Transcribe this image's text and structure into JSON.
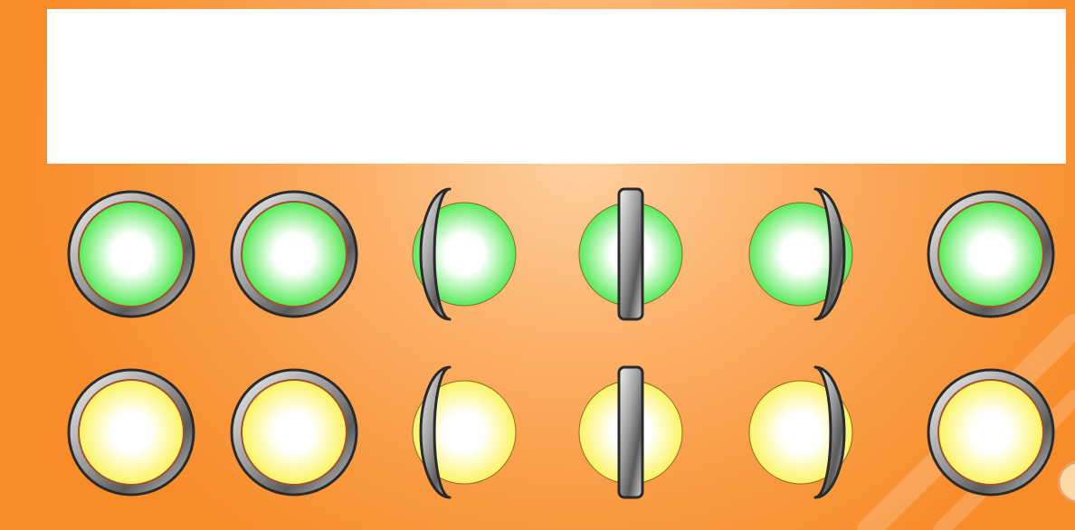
{
  "board": {
    "rows": 2,
    "columns": 6
  },
  "colors": {
    "green": "#3ee63e",
    "yellow": "#fbf24a",
    "background": "#f99c45",
    "panel": "#ffffff"
  },
  "rows": [
    {
      "color": "green",
      "coins": [
        {
          "state": "face-up",
          "rotation": 0.0
        },
        {
          "state": "face-up",
          "rotation": 0.0
        },
        {
          "state": "flipping",
          "rotation": 0.33
        },
        {
          "state": "edge-on",
          "rotation": 0.5
        },
        {
          "state": "flipping",
          "rotation": 0.67
        },
        {
          "state": "face-up",
          "rotation": 1.0
        }
      ]
    },
    {
      "color": "yellow",
      "coins": [
        {
          "state": "face-up",
          "rotation": 0.0
        },
        {
          "state": "face-up",
          "rotation": 0.0
        },
        {
          "state": "flipping",
          "rotation": 0.33
        },
        {
          "state": "edge-on",
          "rotation": 0.5
        },
        {
          "state": "flipping",
          "rotation": 0.67
        },
        {
          "state": "face-up",
          "rotation": 1.0
        }
      ]
    }
  ]
}
